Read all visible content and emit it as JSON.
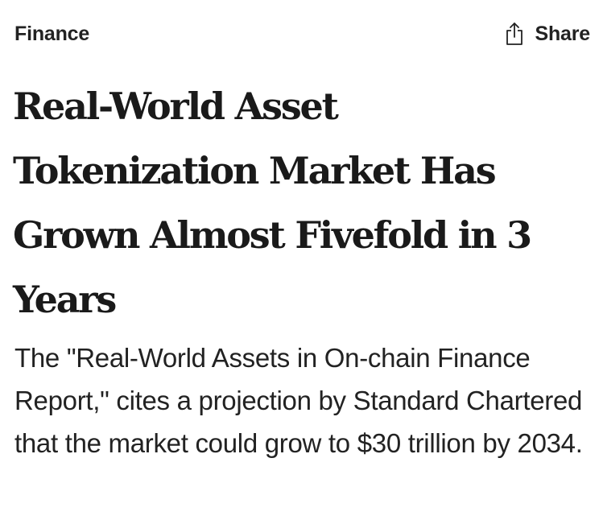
{
  "header": {
    "category": "Finance",
    "share_label": "Share",
    "share_icon": "share-icon"
  },
  "article": {
    "headline": "Real-World Asset Tokenization Market Has Grown Almost Fivefold in 3 Years",
    "summary": "The \"Real-World Assets in On-chain Finance Report,\" cites a projection by Standard Chartered that the market could grow to $30 trillion by 2034."
  },
  "colors": {
    "text": "#1a1a1a",
    "background": "#ffffff"
  }
}
